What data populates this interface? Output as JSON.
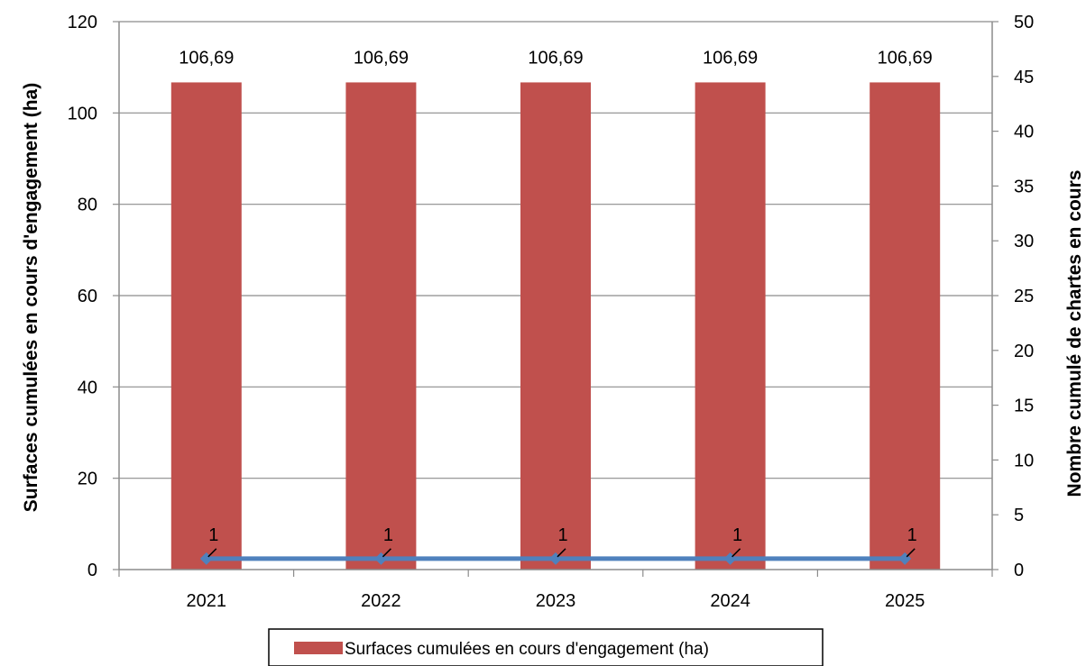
{
  "chart_data": {
    "type": "bar",
    "categories": [
      "2021",
      "2022",
      "2023",
      "2024",
      "2025"
    ],
    "series": [
      {
        "name": "Surfaces cumulées en cours d'engagement (ha)",
        "type": "bar",
        "axis": "left",
        "color": "#c0504d",
        "values": [
          106.69,
          106.69,
          106.69,
          106.69,
          106.69
        ],
        "labels": [
          "106,69",
          "106,69",
          "106,69",
          "106,69",
          "106,69"
        ]
      },
      {
        "type": "line",
        "axis": "right",
        "color": "#4f81bd",
        "values": [
          1,
          1,
          1,
          1,
          1
        ],
        "labels": [
          "1",
          "1",
          "1",
          "1",
          "1"
        ]
      }
    ],
    "ylabel": "Surfaces cumulées en cours d'engagement (ha)",
    "y2label": "Nombre cumulé de  chartes en cours",
    "ylim": [
      0,
      120
    ],
    "yticks": [
      "0",
      "20",
      "40",
      "60",
      "80",
      "100",
      "120"
    ],
    "y2lim": [
      0,
      50
    ],
    "y2ticks": [
      "0",
      "5",
      "10",
      "15",
      "20",
      "25",
      "30",
      "35",
      "40",
      "45",
      "50"
    ],
    "grid": true,
    "legend_position": "bottom",
    "legend": [
      "Surfaces cumulées en cours d'engagement (ha)"
    ]
  }
}
